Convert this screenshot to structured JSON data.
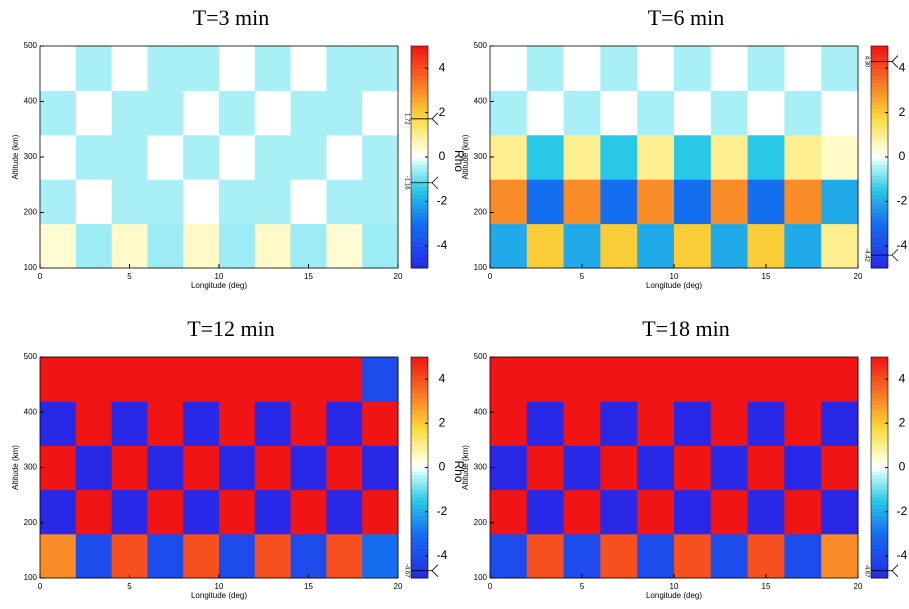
{
  "chart_data": [
    {
      "type": "heatmap",
      "title": "T=3 min",
      "x_label": "Longitude (deg)",
      "y_label": "Altitude (km)",
      "colorbar_label": "Rho",
      "x": [
        1,
        3,
        5,
        7,
        9,
        11,
        13,
        15,
        17,
        19
      ],
      "y": [
        140,
        220,
        300,
        380,
        460
      ],
      "z": [
        [
          0.4,
          -0.6,
          0.5,
          -0.6,
          0.5,
          -0.6,
          0.5,
          -0.6,
          0.4,
          -0.6
        ],
        [
          -0.5,
          0,
          -0.5,
          -0.5,
          0,
          -0.5,
          -0.5,
          0,
          -0.5,
          -0.5
        ],
        [
          0,
          -0.5,
          -0.5,
          0,
          -0.5,
          0,
          -0.5,
          -0.5,
          0,
          -0.5
        ],
        [
          -0.5,
          0,
          -0.5,
          -0.5,
          0,
          -0.5,
          0,
          -0.5,
          -0.5,
          0
        ],
        [
          0,
          -0.5,
          0,
          -0.5,
          -0.5,
          0,
          -0.5,
          0,
          -0.5,
          -0.5
        ]
      ],
      "xlim": [
        0,
        20
      ],
      "xticks": [
        0,
        5,
        10,
        15,
        20
      ],
      "ylim": [
        100,
        500
      ],
      "yticks": [
        100,
        200,
        300,
        400,
        500
      ],
      "clim": [
        -5,
        5
      ],
      "cticks": [
        -4,
        -2,
        0,
        2,
        4
      ],
      "markers": [
        {
          "value": 1.72,
          "label": "1.72"
        },
        {
          "value": -1.16,
          "label": "-1.16"
        }
      ]
    },
    {
      "type": "heatmap",
      "title": "T=6 min",
      "x_label": "Longitude (deg)",
      "y_label": "Altitude (km)",
      "colorbar_label": "Rho",
      "x": [
        1,
        3,
        5,
        7,
        9,
        11,
        13,
        15,
        17,
        19
      ],
      "y": [
        140,
        220,
        300,
        380,
        460
      ],
      "z": [
        [
          -2,
          2,
          -2,
          2,
          -2,
          2,
          -2,
          2,
          -2,
          1
        ],
        [
          3,
          -3,
          3,
          -3,
          3,
          -3,
          3,
          -3,
          3,
          -2
        ],
        [
          1,
          -1.5,
          1,
          -1.5,
          1,
          -1.5,
          1,
          -1.5,
          1,
          0.5
        ],
        [
          -0.5,
          0,
          -0.5,
          0,
          -0.5,
          0,
          -0.5,
          0,
          -0.5,
          0
        ],
        [
          0,
          -0.5,
          0,
          -0.5,
          0,
          -0.5,
          0,
          -0.5,
          0,
          -0.5
        ]
      ],
      "xlim": [
        0,
        20
      ],
      "xticks": [
        0,
        5,
        10,
        15,
        20
      ],
      "ylim": [
        100,
        500
      ],
      "yticks": [
        100,
        200,
        300,
        400,
        500
      ],
      "clim": [
        -5,
        5
      ],
      "cticks": [
        -4,
        -2,
        0,
        2,
        4
      ],
      "markers": [
        {
          "value": 4.3,
          "label": "4.30"
        },
        {
          "value": -4.42,
          "label": "-4.42"
        }
      ]
    },
    {
      "type": "heatmap",
      "title": "T=12 min",
      "x_label": "Longitude (deg)",
      "y_label": "Altitude (km)",
      "colorbar_label": "Rho",
      "x": [
        1,
        3,
        5,
        7,
        9,
        11,
        13,
        15,
        17,
        19
      ],
      "y": [
        140,
        220,
        300,
        380,
        460
      ],
      "z": [
        [
          3,
          -4,
          4,
          -4,
          4,
          -4,
          4,
          -4,
          4,
          -3
        ],
        [
          -5,
          5,
          -5,
          5,
          -5,
          5,
          -5,
          5,
          -5,
          5
        ],
        [
          5,
          -5,
          5,
          -5,
          5,
          -5,
          5,
          -5,
          5,
          -5
        ],
        [
          -5,
          5,
          -5,
          5,
          -5,
          5,
          -5,
          5,
          -5,
          5
        ],
        [
          5,
          5,
          5,
          5,
          5,
          5,
          5,
          5,
          5,
          -4
        ]
      ],
      "xlim": [
        0,
        20
      ],
      "xticks": [
        0,
        5,
        10,
        15,
        20
      ],
      "ylim": [
        100,
        500
      ],
      "yticks": [
        100,
        200,
        300,
        400,
        500
      ],
      "clim": [
        -5,
        5
      ],
      "cticks": [
        -4,
        -2,
        0,
        2,
        4
      ],
      "markers": [
        {
          "value": -4.67,
          "label": "-4.67"
        }
      ]
    },
    {
      "type": "heatmap",
      "title": "T=18 min",
      "x_label": "Longitude (deg)",
      "y_label": "Altitude (km)",
      "colorbar_label": "Rho",
      "x": [
        1,
        3,
        5,
        7,
        9,
        11,
        13,
        15,
        17,
        19
      ],
      "y": [
        140,
        220,
        300,
        380,
        460
      ],
      "z": [
        [
          -4,
          4,
          -4,
          4,
          -4,
          4,
          -4,
          4,
          -4,
          3
        ],
        [
          5,
          -5,
          5,
          -5,
          5,
          -5,
          5,
          -5,
          5,
          -5
        ],
        [
          -5,
          5,
          -5,
          5,
          -5,
          5,
          -5,
          5,
          -5,
          5
        ],
        [
          5,
          -5,
          5,
          -5,
          5,
          -5,
          5,
          -5,
          5,
          -5
        ],
        [
          5,
          5,
          5,
          5,
          5,
          5,
          5,
          5,
          5,
          5
        ]
      ],
      "xlim": [
        0,
        20
      ],
      "xticks": [
        0,
        5,
        10,
        15,
        20
      ],
      "ylim": [
        100,
        500
      ],
      "yticks": [
        100,
        200,
        300,
        400,
        500
      ],
      "clim": [
        -5,
        5
      ],
      "cticks": [
        -4,
        -2,
        0,
        2,
        4
      ],
      "markers": [
        {
          "value": -4.67,
          "label": "-4.67"
        }
      ]
    }
  ]
}
